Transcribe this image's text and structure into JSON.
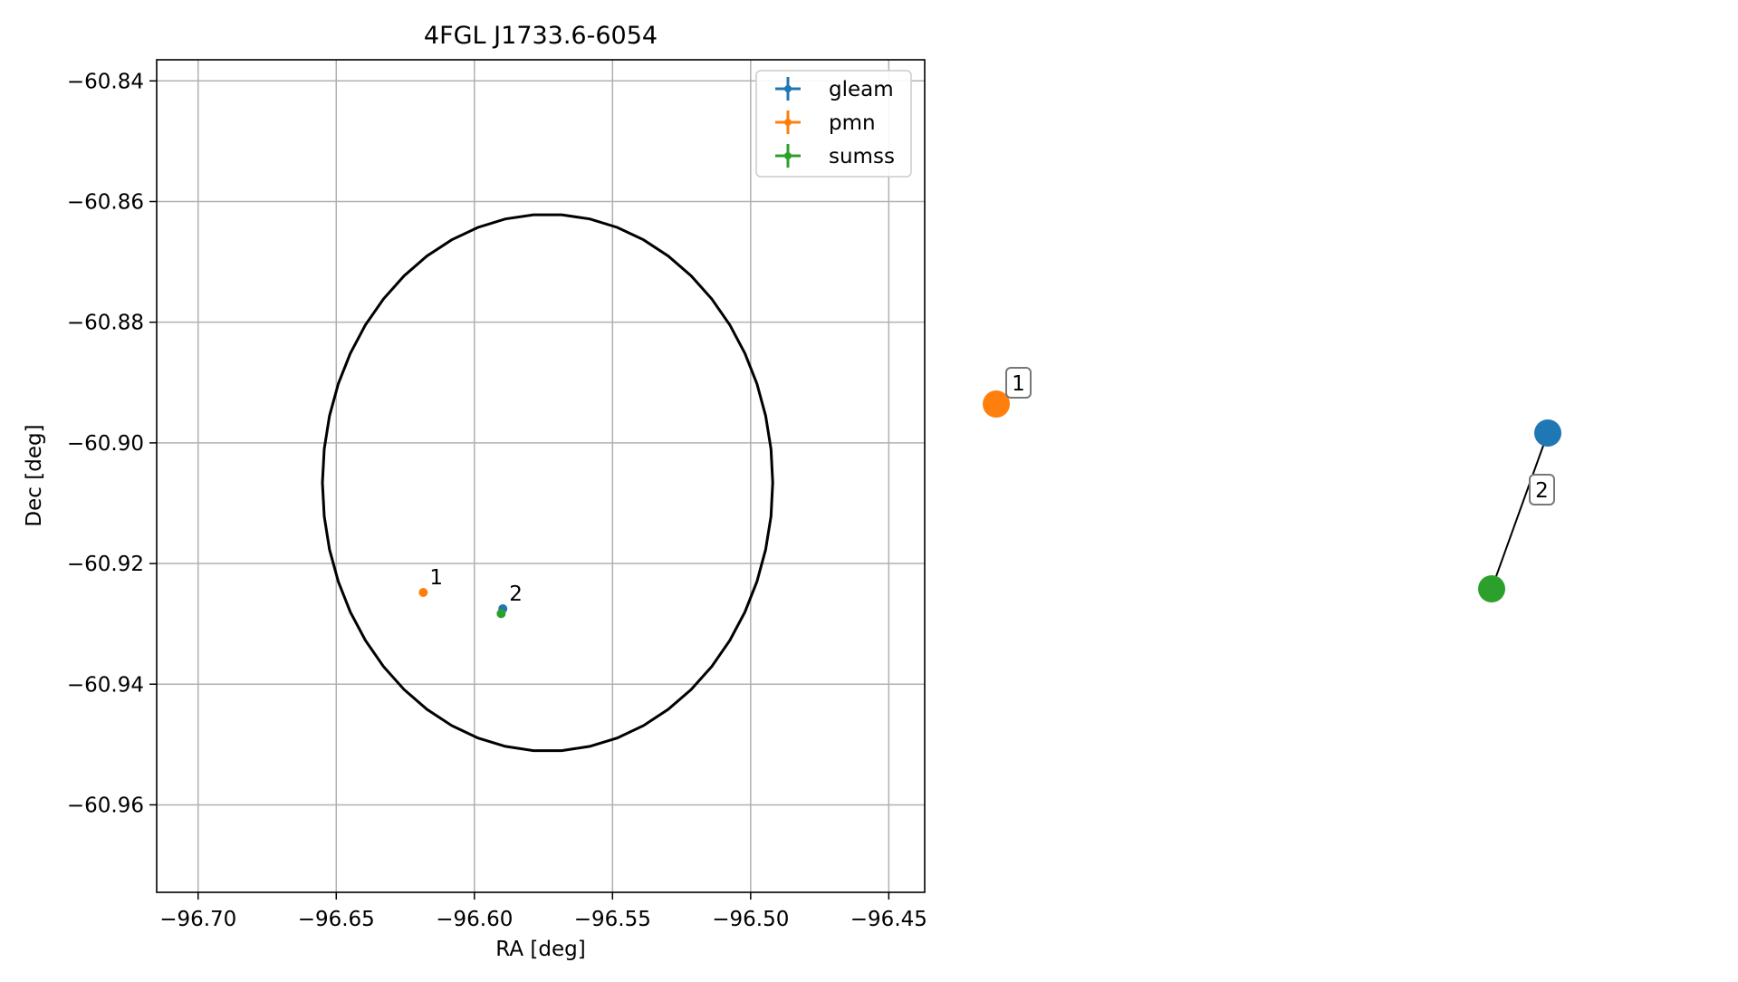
{
  "chart_data": [
    {
      "type": "scatter",
      "title": "4FGL J1733.6-6054",
      "xlabel": "RA [deg]",
      "ylabel": "Dec [deg]",
      "xlim": [
        -96.715,
        -96.437
      ],
      "ylim": [
        -60.9745,
        -60.8365
      ],
      "xticks": [
        -96.7,
        -96.65,
        -96.6,
        -96.55,
        -96.5,
        -96.45
      ],
      "xtick_labels": [
        "−96.70",
        "−96.65",
        "−96.60",
        "−96.55",
        "−96.50",
        "−96.45"
      ],
      "yticks": [
        -60.84,
        -60.86,
        -60.88,
        -60.9,
        -60.92,
        -60.94,
        -60.96
      ],
      "ytick_labels": [
        "−60.84",
        "−60.86",
        "−60.88",
        "−60.90",
        "−60.92",
        "−60.94",
        "−60.96"
      ],
      "grid": true,
      "legend_placement": "top-right",
      "ellipse": {
        "center_ra": -96.5735,
        "center_dec": -60.9066,
        "half_width_ra": 0.0815,
        "half_height_dec": 0.0445
      },
      "series": [
        {
          "name": "gleam",
          "color": "#1f77b4",
          "points": [
            {
              "x": -96.5897,
              "y": -60.9275
            }
          ]
        },
        {
          "name": "pmn",
          "color": "#ff7f0e",
          "points": [
            {
              "x": -96.6185,
              "y": -60.9248
            }
          ]
        },
        {
          "name": "sumss",
          "color": "#2ca02c",
          "points": [
            {
              "x": -96.5903,
              "y": -60.9283
            }
          ]
        }
      ],
      "annotations": [
        {
          "text": "1",
          "x": -96.6185,
          "y": -60.9248
        },
        {
          "text": "2",
          "x": -96.5897,
          "y": -60.9275
        }
      ]
    },
    {
      "type": "diagram",
      "nodes": [
        {
          "series": "pmn",
          "color": "#ff7f0e"
        },
        {
          "series": "gleam",
          "color": "#1f77b4"
        },
        {
          "series": "sumss",
          "color": "#2ca02c"
        }
      ],
      "edges": [
        {
          "from": "gleam",
          "to": "sumss"
        }
      ],
      "labels": [
        {
          "text": "1",
          "group": "pmn"
        },
        {
          "text": "2",
          "group": "gleam-sumss"
        }
      ]
    }
  ]
}
